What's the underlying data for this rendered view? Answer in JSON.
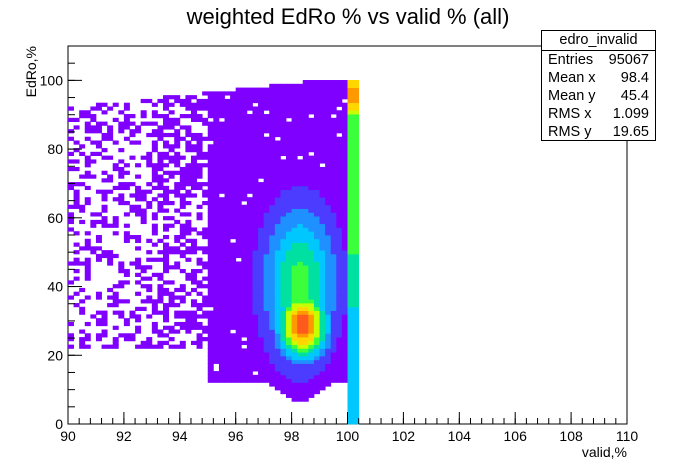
{
  "chart_data": {
    "type": "heatmap",
    "title": "weighted EdRo % vs valid % (all)",
    "xlabel": "valid,%",
    "ylabel": "EdRo,%",
    "xlim": [
      90,
      110
    ],
    "ylim": [
      0,
      110
    ],
    "x_ticks": [
      "90",
      "92",
      "94",
      "96",
      "98",
      "100",
      "102",
      "104",
      "106",
      "108",
      "110"
    ],
    "y_ticks": [
      "0",
      "20",
      "40",
      "60",
      "80",
      "100"
    ],
    "stats_box": {
      "name": "edro_invalid",
      "rows": [
        {
          "label": "Entries",
          "value": "95067"
        },
        {
          "label": "Mean x",
          "value": "98.4"
        },
        {
          "label": "Mean y",
          "value": "45.4"
        },
        {
          "label": "RMS x",
          "value": "1.099"
        },
        {
          "label": "RMS y",
          "value": "19.65"
        }
      ]
    },
    "palette": [
      "#7f00ff",
      "#4b3cff",
      "#1e90ff",
      "#00c8ff",
      "#00e0a0",
      "#3cff3c",
      "#c8ff00",
      "#ffd700",
      "#ff9900",
      "#ff5a1e"
    ],
    "hotspot": {
      "x": 98.4,
      "y": 29
    }
  }
}
